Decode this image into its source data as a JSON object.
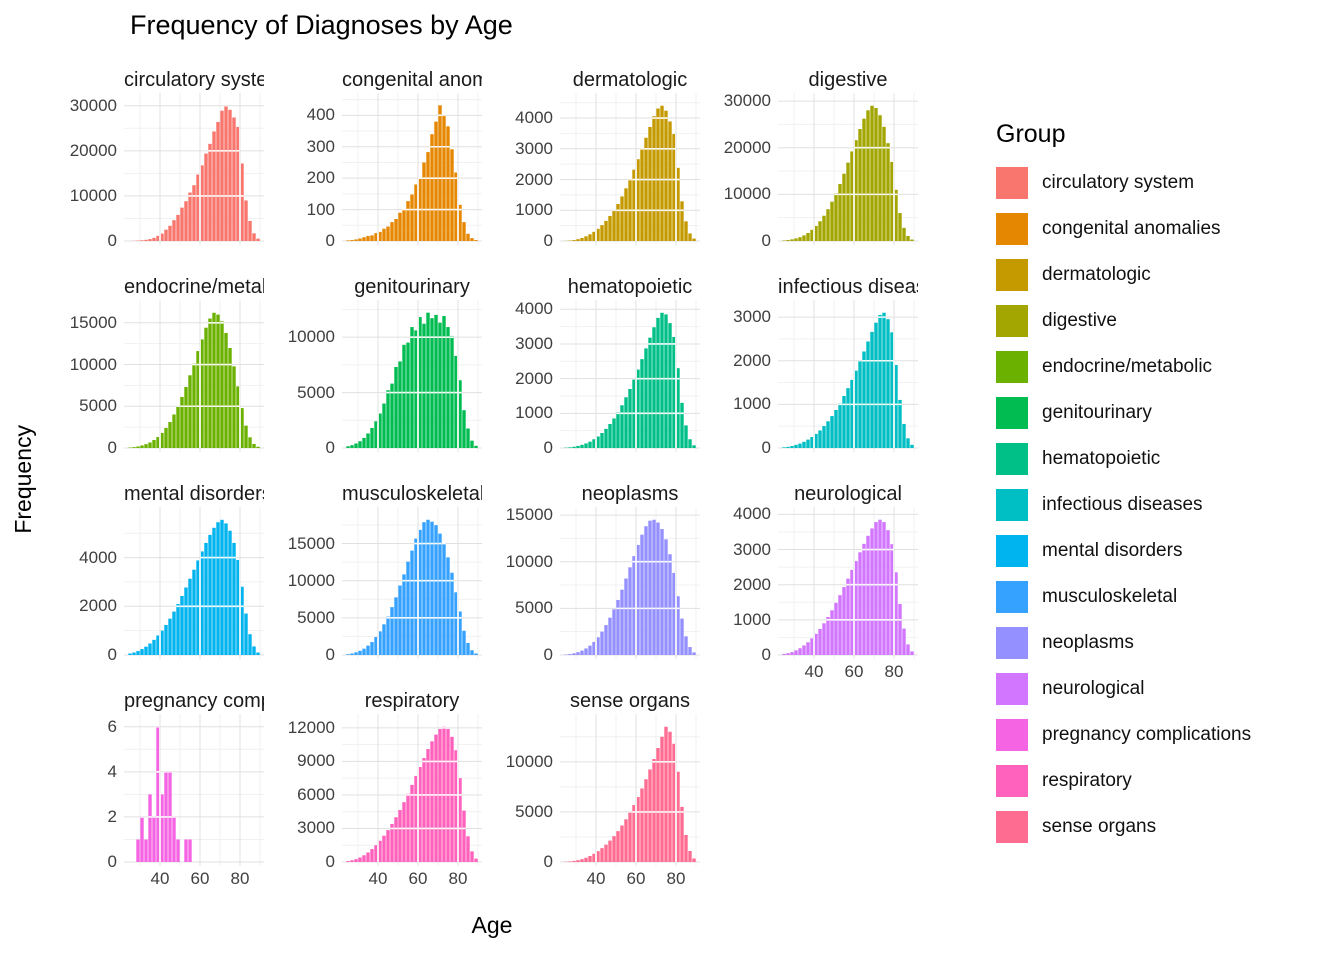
{
  "chart_data": {
    "type": "bar",
    "subtype": "histogram-facets",
    "title": "Frequency of Diagnoses by Age",
    "xlabel": "Age",
    "ylabel": "Frequency",
    "legend_title": "Group",
    "legend_position": "right",
    "grid": true,
    "facet_columns": 4,
    "x_range": [
      22,
      92
    ],
    "x_ticks": [
      40,
      60,
      80
    ],
    "bin_start": 24,
    "bin_width": 2,
    "facets": [
      {
        "label": "circulatory system",
        "color": "#F8766D",
        "y_ticks": [
          0,
          10000,
          20000,
          30000
        ],
        "y_max": 31500,
        "show_x_axis": false,
        "counts": [
          0,
          40,
          90,
          160,
          260,
          430,
          690,
          1150,
          1650,
          2520,
          3380,
          4620,
          5790,
          7400,
          8830,
          10750,
          12380,
          14750,
          16780,
          19400,
          21550,
          24300,
          26400,
          28900,
          30000,
          29100,
          27400,
          25300,
          17200,
          9000,
          4450,
          1700,
          520
        ]
      },
      {
        "label": "congenital anomalies",
        "color": "#E58700",
        "y_ticks": [
          0,
          100,
          200,
          300,
          400
        ],
        "y_max": 452,
        "show_x_axis": false,
        "counts": [
          2,
          3,
          5,
          8,
          12,
          16,
          18,
          25,
          29,
          39,
          46,
          60,
          70,
          90,
          102,
          127,
          148,
          180,
          202,
          250,
          283,
          340,
          380,
          432,
          400,
          365,
          292,
          218,
          115,
          60,
          23,
          9,
          3
        ]
      },
      {
        "label": "dermatologic",
        "color": "#C49A00",
        "y_ticks": [
          0,
          1000,
          2000,
          3000,
          4000
        ],
        "y_max": 4620,
        "show_x_axis": false,
        "counts": [
          6,
          14,
          30,
          58,
          98,
          152,
          218,
          298,
          395,
          515,
          655,
          815,
          1000,
          1205,
          1450,
          1715,
          2010,
          2320,
          2660,
          3010,
          3360,
          3710,
          4060,
          4310,
          4400,
          4240,
          3890,
          3480,
          2380,
          1290,
          640,
          245,
          78
        ]
      },
      {
        "label": "digestive",
        "color": "#A3A500",
        "y_ticks": [
          0,
          10000,
          20000,
          30000
        ],
        "y_max": 30450,
        "show_x_axis": false,
        "counts": [
          110,
          210,
          360,
          560,
          820,
          1210,
          1720,
          2400,
          3230,
          4230,
          5420,
          6820,
          8420,
          10220,
          12230,
          14430,
          16810,
          19210,
          21620,
          24020,
          26230,
          28020,
          29000,
          28520,
          26980,
          24480,
          20980,
          16950,
          10980,
          5980,
          2820,
          1080,
          310
        ]
      },
      {
        "label": "endocrine/metabolic",
        "color": "#6BB100",
        "y_ticks": [
          0,
          5000,
          10000,
          15000
        ],
        "y_max": 17010,
        "show_x_axis": false,
        "counts": [
          55,
          105,
          185,
          305,
          455,
          660,
          955,
          1310,
          1805,
          2405,
          3110,
          4010,
          5010,
          6110,
          7310,
          8710,
          10110,
          11610,
          13010,
          14410,
          15510,
          16200,
          15980,
          15180,
          13780,
          11980,
          9780,
          7380,
          4780,
          2680,
          1280,
          490,
          145
        ]
      },
      {
        "label": "genitourinary",
        "color": "#00BC51",
        "y_ticks": [
          0,
          5000,
          10000
        ],
        "y_max": 12810,
        "show_x_axis": false,
        "counts": [
          155,
          255,
          405,
          610,
          910,
          1310,
          1810,
          2410,
          3110,
          4010,
          5210,
          5810,
          7310,
          7810,
          9310,
          9510,
          10910,
          10610,
          11810,
          11210,
          12210,
          11710,
          12010,
          11310,
          11910,
          10910,
          10110,
          8310,
          6110,
          3410,
          1760,
          660,
          200
        ]
      },
      {
        "label": "hematopoietic",
        "color": "#00C087",
        "y_ticks": [
          0,
          1000,
          2000,
          3000,
          4000
        ],
        "y_max": 4095,
        "show_x_axis": false,
        "counts": [
          10,
          20,
          36,
          60,
          92,
          132,
          182,
          252,
          332,
          432,
          552,
          692,
          852,
          1032,
          1232,
          1462,
          1702,
          1972,
          2262,
          2562,
          2872,
          3182,
          3482,
          3752,
          3900,
          3852,
          3602,
          3202,
          2302,
          1302,
          652,
          252,
          78
        ]
      },
      {
        "label": "infectious diseases",
        "color": "#00BFC4",
        "y_ticks": [
          0,
          1000,
          2000,
          3000
        ],
        "y_max": 3255,
        "show_x_axis": false,
        "counts": [
          16,
          26,
          46,
          72,
          102,
          142,
          192,
          252,
          322,
          402,
          502,
          612,
          732,
          872,
          1022,
          1192,
          1372,
          1562,
          1772,
          1992,
          2212,
          2442,
          2662,
          2872,
          3050,
          3100,
          2952,
          2652,
          1902,
          1102,
          552,
          222,
          72
        ]
      },
      {
        "label": "mental disorders",
        "color": "#00B4F0",
        "y_ticks": [
          0,
          2000,
          4000
        ],
        "y_max": 5830,
        "show_x_axis": false,
        "counts": [
          62,
          102,
          162,
          242,
          342,
          472,
          622,
          802,
          1002,
          1232,
          1492,
          1782,
          2092,
          2422,
          2772,
          3132,
          3502,
          3882,
          4252,
          4602,
          4932,
          5222,
          5450,
          5550,
          5402,
          5102,
          4602,
          3902,
          2802,
          1702,
          852,
          352,
          102
        ]
      },
      {
        "label": "musculoskeletal",
        "color": "#35A2FF",
        "y_ticks": [
          0,
          5000,
          10000,
          15000
        ],
        "y_max": 19110,
        "show_x_axis": false,
        "counts": [
          105,
          205,
          355,
          560,
          850,
          1265,
          1740,
          2420,
          3180,
          4130,
          5170,
          6440,
          7760,
          9350,
          10850,
          12560,
          14050,
          15670,
          16840,
          17870,
          18200,
          17940,
          17470,
          16340,
          15070,
          13140,
          11070,
          8440,
          5860,
          3260,
          1630,
          640,
          205
        ]
      },
      {
        "label": "neoplasms",
        "color": "#9590FF",
        "y_ticks": [
          0,
          5000,
          10000,
          15000
        ],
        "y_max": 15225,
        "show_x_axis": false,
        "counts": [
          52,
          102,
          182,
          302,
          472,
          702,
          1002,
          1402,
          1902,
          2502,
          3202,
          4002,
          4902,
          5902,
          7002,
          8202,
          9402,
          10602,
          11802,
          12902,
          13802,
          14402,
          14500,
          14202,
          13502,
          12402,
          10802,
          8802,
          6302,
          3902,
          2002,
          852,
          282
        ]
      },
      {
        "label": "neurological",
        "color": "#D376FF",
        "y_ticks": [
          0,
          1000,
          2000,
          3000,
          4000
        ],
        "y_max": 4040,
        "show_x_axis": true,
        "counts": [
          32,
          52,
          82,
          132,
          192,
          272,
          362,
          472,
          602,
          742,
          902,
          1082,
          1272,
          1482,
          1702,
          1932,
          2172,
          2422,
          2672,
          2922,
          3162,
          3392,
          3602,
          3782,
          3850,
          3782,
          3552,
          3152,
          2352,
          1452,
          752,
          302,
          102
        ]
      },
      {
        "label": "pregnancy complications",
        "color": "#F564E3",
        "y_ticks": [
          0,
          2,
          4,
          6
        ],
        "y_max": 6.3,
        "show_x_axis": true,
        "counts": [
          0,
          0,
          1,
          2,
          1,
          3,
          2,
          6,
          3,
          4,
          4,
          2,
          1,
          0,
          1,
          1,
          0,
          0,
          0,
          0,
          0,
          0,
          0,
          0,
          0,
          0,
          0,
          0,
          0,
          0,
          0,
          0,
          0
        ]
      },
      {
        "label": "respiratory",
        "color": "#FF62BC",
        "y_ticks": [
          0,
          3000,
          6000,
          9000,
          12000
        ],
        "y_max": 12705,
        "show_x_axis": true,
        "counts": [
          82,
          152,
          252,
          402,
          602,
          852,
          1152,
          1502,
          1902,
          2352,
          2852,
          3402,
          4002,
          4652,
          5352,
          6102,
          6902,
          7702,
          8502,
          9302,
          10102,
          10802,
          11402,
          11902,
          12100,
          11902,
          11202,
          10002,
          7502,
          4602,
          2302,
          952,
          302
        ]
      },
      {
        "label": "sense organs",
        "color": "#FF6C91",
        "y_ticks": [
          0,
          5000,
          10000
        ],
        "y_max": 14175,
        "show_x_axis": true,
        "counts": [
          32,
          62,
          112,
          182,
          282,
          422,
          602,
          822,
          1082,
          1382,
          1732,
          2132,
          2582,
          3082,
          3642,
          4262,
          4942,
          5682,
          6482,
          7342,
          8262,
          9242,
          10282,
          11382,
          12500,
          13500,
          13002,
          11802,
          9002,
          5502,
          2702,
          1102,
          352
        ]
      }
    ]
  }
}
